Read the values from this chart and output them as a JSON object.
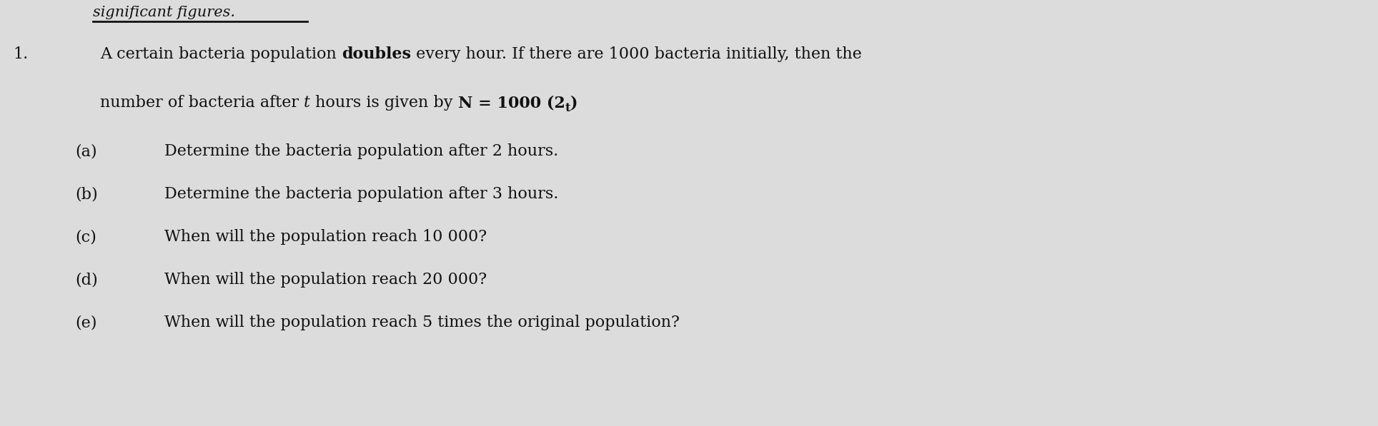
{
  "background_color": "#dcdcdc",
  "number": "1.",
  "line1_part1": "A certain bacteria population ",
  "line1_bold": "doubles",
  "line1_part2": " every hour. If there are 1000 bacteria initially, then the",
  "line2_part1": "number of bacteria after ",
  "line2_italic": "t",
  "line2_part2": " hours is given by ",
  "line2_bold1": "N = 1000 (2",
  "line2_super": "t",
  "line2_bold2": ")",
  "items": [
    {
      "label": "(a)",
      "text": "Determine the bacteria population after 2 hours."
    },
    {
      "label": "(b)",
      "text": "Determine the bacteria population after 3 hours."
    },
    {
      "label": "(c)",
      "text": "When will the population reach 10 000?"
    },
    {
      "label": "(d)",
      "text": "When will the population reach 20 000?"
    },
    {
      "label": "(e)",
      "text": "When will the population reach 5 times the original population?"
    }
  ],
  "header_text": "significant figures.",
  "font_size_body": 16,
  "font_size_super": 12,
  "font_size_header": 15,
  "text_color": "#111111"
}
